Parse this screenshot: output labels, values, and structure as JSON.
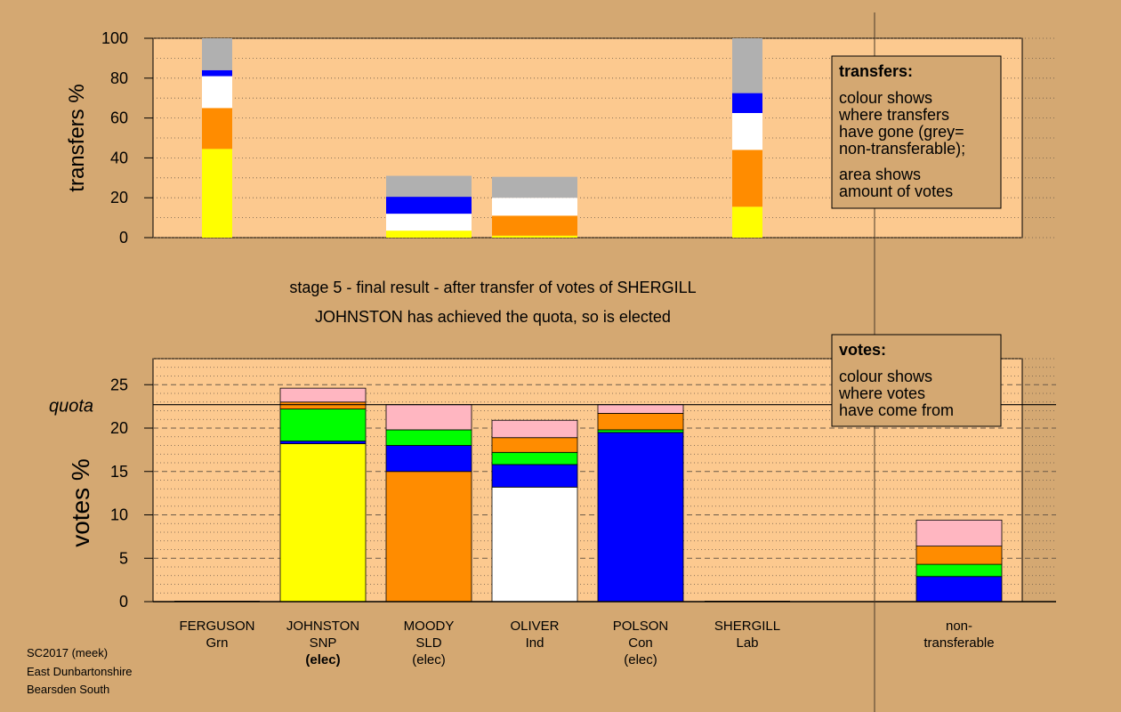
{
  "colors": {
    "page_bg": "#d4a872",
    "plot_bg": "#fcc98f",
    "yellow": "#ffff00",
    "orange": "#ff8c00",
    "white": "#ffffff",
    "blue": "#0000ff",
    "green": "#00ff00",
    "pink": "#ffb6c1",
    "grey": "#b0b0b0",
    "black": "#000000"
  },
  "stage_title": "stage 5 - final result - after transfer of votes of SHERGILL",
  "stage_subtitle": "JOHNSTON has achieved the quota, so is elected",
  "legend_transfers": {
    "title": "transfers:",
    "lines": [
      "colour shows",
      "where transfers",
      "have gone (grey=",
      "non-transferable);",
      "area shows",
      "amount of votes"
    ]
  },
  "legend_votes": {
    "title": "votes:",
    "lines": [
      "colour shows",
      "where votes",
      "have come from"
    ]
  },
  "footer": [
    "SC2017 (meek)",
    "East Dunbartonshire",
    "Bearsden South"
  ],
  "chart_data": [
    {
      "type": "bar",
      "stacked": true,
      "ylabel": "transfers %",
      "ylim": [
        0,
        100
      ],
      "yticks": [
        "0",
        "20",
        "40",
        "60",
        "80",
        "100"
      ],
      "grid": "dotted",
      "bars": [
        {
          "candidate_index": 0,
          "width": "narrow",
          "segments": [
            {
              "color": "yellow",
              "value": 44.5
            },
            {
              "color": "orange",
              "value": 20.5
            },
            {
              "color": "white",
              "value": 16.0
            },
            {
              "color": "blue",
              "value": 3.0
            },
            {
              "color": "grey",
              "value": 16.0
            }
          ]
        },
        {
          "candidate_index": 2,
          "width": "wide",
          "segments": [
            {
              "color": "yellow",
              "value": 3.5
            },
            {
              "color": "white",
              "value": 8.5
            },
            {
              "color": "blue",
              "value": 8.5
            },
            {
              "color": "grey",
              "value": 10.5
            }
          ]
        },
        {
          "candidate_index": 3,
          "width": "wide",
          "segments": [
            {
              "color": "yellow",
              "value": 1.0
            },
            {
              "color": "orange",
              "value": 10.0
            },
            {
              "color": "white",
              "value": 9.0
            },
            {
              "color": "grey",
              "value": 10.5
            }
          ]
        },
        {
          "candidate_index": 5,
          "width": "narrow",
          "segments": [
            {
              "color": "yellow",
              "value": 15.5
            },
            {
              "color": "orange",
              "value": 28.5
            },
            {
              "color": "white",
              "value": 18.5
            },
            {
              "color": "blue",
              "value": 10.0
            },
            {
              "color": "grey",
              "value": 27.5
            }
          ]
        }
      ]
    },
    {
      "type": "bar",
      "stacked": true,
      "ylabel": "votes %",
      "ylim": [
        0,
        28
      ],
      "yticks": [
        "0",
        "5",
        "10",
        "15",
        "20",
        "25"
      ],
      "quota_label": "quota",
      "quota_value": 22.7,
      "grid": "dashed-dotted",
      "candidates": [
        {
          "name": "FERGUSON",
          "party": "Grn",
          "status": ""
        },
        {
          "name": "JOHNSTON",
          "party": "SNP",
          "status": "(elec)"
        },
        {
          "name": "MOODY",
          "party": "SLD",
          "status": "(elec)"
        },
        {
          "name": "OLIVER",
          "party": "Ind",
          "status": ""
        },
        {
          "name": "POLSON",
          "party": "Con",
          "status": "(elec)"
        },
        {
          "name": "SHERGILL",
          "party": "Lab",
          "status": ""
        },
        {
          "name": "non-",
          "party": "transferable",
          "status": ""
        }
      ],
      "bars": [
        {
          "candidate_index": 1,
          "segments": [
            {
              "color": "yellow",
              "value": 18.2
            },
            {
              "color": "blue",
              "value": 0.3
            },
            {
              "color": "green",
              "value": 3.7
            },
            {
              "color": "orange",
              "value": 0.8
            },
            {
              "color": "pink",
              "value": 1.6
            }
          ]
        },
        {
          "candidate_index": 2,
          "segments": [
            {
              "color": "orange",
              "value": 15.0
            },
            {
              "color": "blue",
              "value": 3.0
            },
            {
              "color": "green",
              "value": 1.8
            },
            {
              "color": "pink",
              "value": 2.9
            }
          ]
        },
        {
          "candidate_index": 3,
          "segments": [
            {
              "color": "white",
              "value": 13.2
            },
            {
              "color": "blue",
              "value": 2.6
            },
            {
              "color": "green",
              "value": 1.4
            },
            {
              "color": "orange",
              "value": 1.7
            },
            {
              "color": "pink",
              "value": 2.0
            }
          ]
        },
        {
          "candidate_index": 4,
          "segments": [
            {
              "color": "blue",
              "value": 19.5
            },
            {
              "color": "green",
              "value": 0.3
            },
            {
              "color": "orange",
              "value": 1.9
            },
            {
              "color": "pink",
              "value": 1.0
            }
          ]
        },
        {
          "candidate_index": 6,
          "segments": [
            {
              "color": "blue",
              "value": 2.9
            },
            {
              "color": "green",
              "value": 1.4
            },
            {
              "color": "orange",
              "value": 2.1
            },
            {
              "color": "pink",
              "value": 3.0
            }
          ]
        }
      ]
    }
  ]
}
